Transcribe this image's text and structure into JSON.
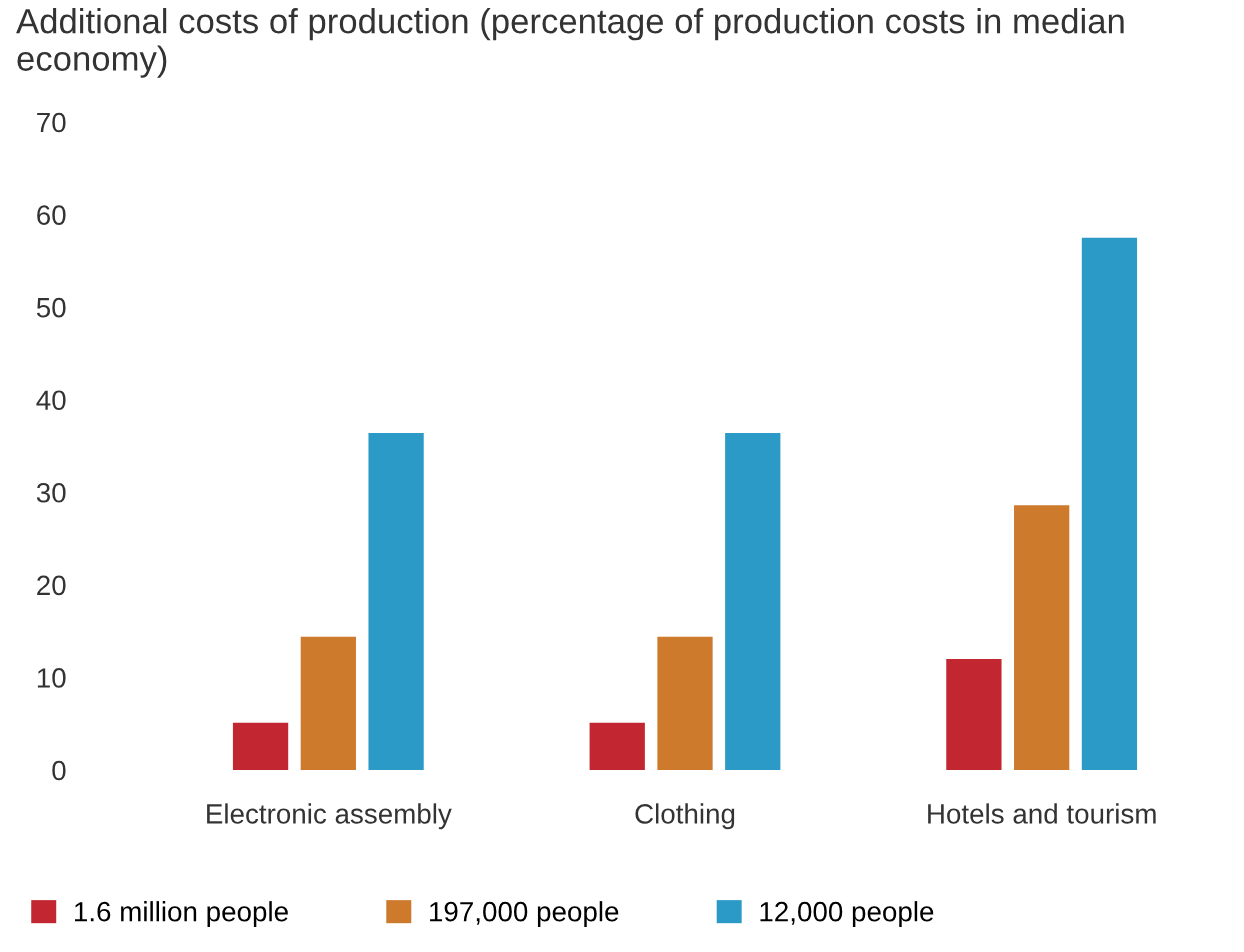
{
  "chart_data": {
    "type": "bar",
    "title": "Additional costs of production (percentage of production costs in median economy)",
    "categories": [
      "Electronic assembly",
      "Clothing",
      "Hotels and tourism"
    ],
    "series": [
      {
        "name": "1.6 million people",
        "color": "#c22731",
        "values": [
          5.1,
          5.1,
          12.0
        ]
      },
      {
        "name": "197,000 people",
        "color": "#cd7a2d",
        "values": [
          14.4,
          14.4,
          28.6
        ]
      },
      {
        "name": "12,000 people",
        "color": "#2c9ac7",
        "values": [
          36.4,
          36.4,
          57.5
        ]
      }
    ],
    "ylim": [
      0,
      70
    ],
    "yticks": [
      0,
      10,
      20,
      30,
      40,
      50,
      60,
      70
    ],
    "grid": false,
    "legend": "bottom"
  }
}
